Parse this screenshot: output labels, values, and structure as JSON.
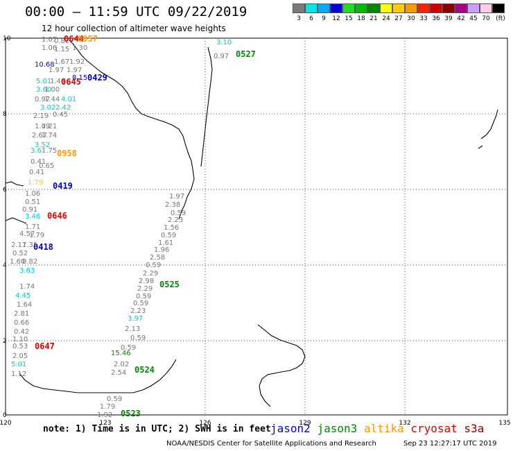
{
  "header": {
    "title": "00:00 – 11:59 UTC 09/22/2019",
    "subtitle": "12 hour collection of altimeter wave heights"
  },
  "legend": {
    "labels": [
      "3",
      "6",
      "9",
      "12",
      "15",
      "18",
      "21",
      "24",
      "27",
      "30",
      "33",
      "36",
      "39",
      "42",
      "45",
      "70",
      "(ft)"
    ],
    "colors": [
      "#7a7a7a",
      "#00e5e5",
      "#00aaff",
      "#0000dd",
      "#22dd22",
      "#00bb00",
      "#008800",
      "#ffff00",
      "#ffcc00",
      "#ff9900",
      "#ff2200",
      "#cc0000",
      "#880000",
      "#aa0088",
      "#c8a0ff",
      "#ffcce8",
      "#000000"
    ]
  },
  "axes": {
    "x_ticks": [
      "120",
      "123",
      "126",
      "129",
      "132",
      "135"
    ],
    "y_ticks": [
      "10",
      "8",
      "6",
      "4",
      "2",
      "0"
    ]
  },
  "labels": [
    {
      "t": "1.07",
      "c": "#777"
    },
    {
      "t": "0.82",
      "c": "#777"
    },
    {
      "t": "0644",
      "c": "#e00000"
    },
    {
      "t": "0957",
      "c": "#ff9900"
    },
    {
      "t": "1.06",
      "c": "#777"
    },
    {
      "t": "1.15",
      "c": "#777"
    },
    {
      "t": "1.30",
      "c": "#777"
    },
    {
      "t": "1.67",
      "c": "#777"
    },
    {
      "t": "1.92",
      "c": "#777"
    },
    {
      "t": "10.68",
      "c": "#0000cc"
    },
    {
      "t": "1.97",
      "c": "#777"
    },
    {
      "t": "1.97",
      "c": "#777"
    },
    {
      "t": "0429",
      "c": "#0000cc"
    },
    {
      "t": "8.15",
      "c": "#0000cc"
    },
    {
      "t": "5.01",
      "c": "#00cccc"
    },
    {
      "t": "1.46",
      "c": "#777"
    },
    {
      "t": "0645",
      "c": "#e00000"
    },
    {
      "t": "3.60",
      "c": "#00cccc"
    },
    {
      "t": "1.00",
      "c": "#777"
    },
    {
      "t": "0.97",
      "c": "#777"
    },
    {
      "t": "1.44",
      "c": "#777"
    },
    {
      "t": "4.01",
      "c": "#00cccc"
    },
    {
      "t": "3.02",
      "c": "#00cccc"
    },
    {
      "t": "2.42",
      "c": "#00cccc"
    },
    {
      "t": "2.19",
      "c": "#777"
    },
    {
      "t": "0.45",
      "c": "#777"
    },
    {
      "t": "1.09",
      "c": "#777"
    },
    {
      "t": "1.21",
      "c": "#777"
    },
    {
      "t": "2.67",
      "c": "#777"
    },
    {
      "t": "1.74",
      "c": "#777"
    },
    {
      "t": "3.52",
      "c": "#00cccc"
    },
    {
      "t": "1.75",
      "c": "#777"
    },
    {
      "t": "0958",
      "c": "#ff9900"
    },
    {
      "t": "3.61",
      "c": "#00cccc"
    },
    {
      "t": "0.41",
      "c": "#777"
    },
    {
      "t": "0.65",
      "c": "#777"
    },
    {
      "t": "0.41",
      "c": "#777"
    },
    {
      "t": "1.79",
      "c": "#ffcc00"
    },
    {
      "t": "0419",
      "c": "#0000cc"
    },
    {
      "t": "1.06",
      "c": "#777"
    },
    {
      "t": "0.51",
      "c": "#777"
    },
    {
      "t": "0.91",
      "c": "#777"
    },
    {
      "t": "3.46",
      "c": "#00cccc"
    },
    {
      "t": "0646",
      "c": "#e00000"
    },
    {
      "t": "1.71",
      "c": "#777"
    },
    {
      "t": "4.57",
      "c": "#777"
    },
    {
      "t": "1.79",
      "c": "#777"
    },
    {
      "t": "2.17",
      "c": "#777"
    },
    {
      "t": "1.35",
      "c": "#777"
    },
    {
      "t": "0418",
      "c": "#0000cc"
    },
    {
      "t": "0.52",
      "c": "#777"
    },
    {
      "t": "1.60",
      "c": "#777"
    },
    {
      "t": "0.82",
      "c": "#777"
    },
    {
      "t": "3.63",
      "c": "#00cccc"
    },
    {
      "t": "1.74",
      "c": "#777"
    },
    {
      "t": "4.45",
      "c": "#00cccc"
    },
    {
      "t": "1.64",
      "c": "#777"
    },
    {
      "t": "2.81",
      "c": "#777"
    },
    {
      "t": "0.66",
      "c": "#777"
    },
    {
      "t": "0.42",
      "c": "#777"
    },
    {
      "t": "1.10",
      "c": "#777"
    },
    {
      "t": "0.53",
      "c": "#777"
    },
    {
      "t": "0647",
      "c": "#e00000"
    },
    {
      "t": "2.05",
      "c": "#777"
    },
    {
      "t": "5.01",
      "c": "#00cccc"
    },
    {
      "t": "1.12",
      "c": "#777"
    },
    {
      "t": "1.97",
      "c": "#777"
    },
    {
      "t": "2.38",
      "c": "#777"
    },
    {
      "t": "0.59",
      "c": "#777"
    },
    {
      "t": "2.23",
      "c": "#777"
    },
    {
      "t": "1.56",
      "c": "#777"
    },
    {
      "t": "0.59",
      "c": "#777"
    },
    {
      "t": "1.61",
      "c": "#777"
    },
    {
      "t": "1.96",
      "c": "#777"
    },
    {
      "t": "2.58",
      "c": "#777"
    },
    {
      "t": "0.59",
      "c": "#777"
    },
    {
      "t": "2.29",
      "c": "#777"
    },
    {
      "t": "2.98",
      "c": "#777"
    },
    {
      "t": "2.29",
      "c": "#777"
    },
    {
      "t": "0525",
      "c": "#008800"
    },
    {
      "t": "0.59",
      "c": "#777"
    },
    {
      "t": "0.59",
      "c": "#777"
    },
    {
      "t": "2.23",
      "c": "#777"
    },
    {
      "t": "3.97",
      "c": "#00cccc"
    },
    {
      "t": "2.13",
      "c": "#777"
    },
    {
      "t": "0.59",
      "c": "#777"
    },
    {
      "t": "0.59",
      "c": "#777"
    },
    {
      "t": "15.46",
      "c": "#008800"
    },
    {
      "t": "2.02",
      "c": "#777"
    },
    {
      "t": "2.54",
      "c": "#777"
    },
    {
      "t": "0524",
      "c": "#008800"
    },
    {
      "t": "0.59",
      "c": "#777"
    },
    {
      "t": "1.79",
      "c": "#777"
    },
    {
      "t": "1.92",
      "c": "#777"
    },
    {
      "t": "0523",
      "c": "#008800"
    },
    {
      "t": "3.10",
      "c": "#00cccc"
    },
    {
      "t": "0.97",
      "c": "#777"
    },
    {
      "t": "0527",
      "c": "#008800"
    }
  ],
  "note": "note: 1) Time is in UTC; 2) SWH is in feet",
  "satellites": [
    {
      "name": "jason2",
      "color": "#0000dd"
    },
    {
      "name": "jason3",
      "color": "#008800"
    },
    {
      "name": "altika",
      "color": "#ff9900"
    },
    {
      "name": "cryosat",
      "color": "#e00000"
    },
    {
      "name": "s3a",
      "color": "#880000"
    }
  ],
  "footer": {
    "credit": "NOAA/NESDIS Center for Satellite Applications and Research",
    "timestamp": "Sep 23 12:27:17 UTC 2019"
  }
}
